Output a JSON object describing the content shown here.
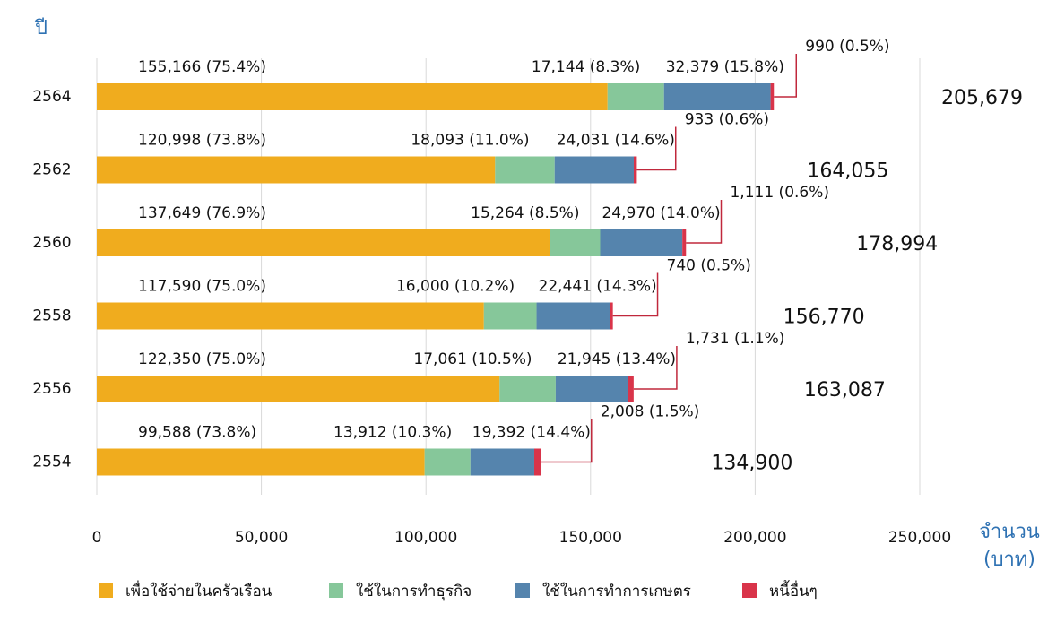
{
  "chart_data": {
    "type": "stacked-barh",
    "ylabel": "ปี",
    "xlabel": [
      "จำนวน",
      "(บาท)"
    ],
    "categories": [
      "2564",
      "2562",
      "2560",
      "2558",
      "2556",
      "2554"
    ],
    "series": [
      {
        "name": "เพื่อใช้จ่ายในครัวเรือน",
        "color": "#f0ac1e",
        "values": [
          155166,
          120998,
          137649,
          117590,
          122350,
          99588
        ],
        "value_labels": [
          "155,166 (75.4%)",
          "120,998 (73.8%)",
          "137,649 (76.9%)",
          "117,590 (75.0%)",
          "122,350 (75.0%)",
          "99,588 (73.8%)"
        ]
      },
      {
        "name": "ใช้ในการทำธุรกิจ",
        "color": "#86c79a",
        "values": [
          17144,
          18093,
          15264,
          16000,
          17061,
          13912
        ],
        "value_labels": [
          "17,144 (8.3%)",
          "18,093 (11.0%)",
          "15,264 (8.5%)",
          "16,000 (10.2%)",
          "17,061 (10.5%)",
          "13,912 (10.3%)"
        ]
      },
      {
        "name": "ใช้ในการทำการเกษตร",
        "color": "#5584ad",
        "values": [
          32379,
          24031,
          24970,
          22441,
          21945,
          19392
        ],
        "value_labels": [
          "32,379 (15.8%)",
          "24,031 (14.6%)",
          "24,970 (14.0%)",
          "22,441 (14.3%)",
          "21,945 (13.4%)",
          "19,392 (14.4%)"
        ]
      },
      {
        "name": "หนี้อื่นๆ",
        "color": "#d9344a",
        "values": [
          990,
          933,
          1111,
          740,
          1731,
          2008
        ],
        "value_labels": [
          "990 (0.5%)",
          "933 (0.6%)",
          "1,111 (0.6%)",
          "740 (0.5%)",
          "1,731 (1.1%)",
          "2,008 (1.5%)"
        ]
      }
    ],
    "totals": {
      "values": [
        205679,
        164055,
        178994,
        156770,
        163087,
        134900
      ],
      "value_labels": [
        "205,679",
        "164,055",
        "178,994",
        "156,770",
        "163,087",
        "134,900"
      ]
    },
    "xlim": [
      0,
      250000
    ],
    "xticks": [
      0,
      {
        "value": 50000,
        "label": "50,000"
      },
      {
        "value": 100000,
        "label": "100,000"
      },
      {
        "value": 150000,
        "label": "150,000"
      },
      {
        "value": 200000,
        "label": "200,000"
      },
      {
        "value": 250000,
        "label": "250,000"
      }
    ],
    "grid": true,
    "legend": "bottom"
  }
}
